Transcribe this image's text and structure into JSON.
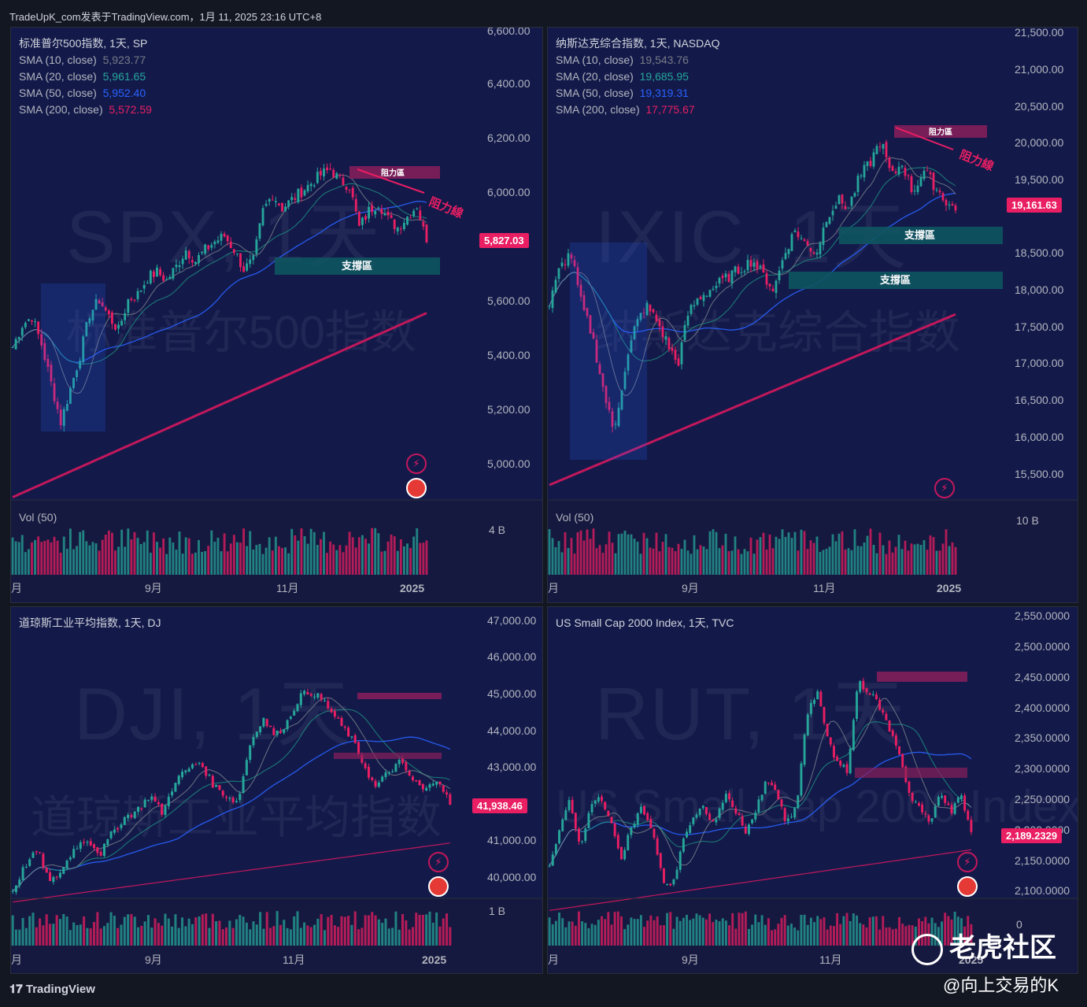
{
  "header": {
    "title": "TradeUpK_com发表于TradingView.com，1月 11, 2025 23:16 UTC+8"
  },
  "footer": {
    "brand": "TradingView",
    "watermark_brand": "老虎社区",
    "author": "@向上交易的K"
  },
  "colors": {
    "up": "#26a69a",
    "down": "#e91e63",
    "sma10": "#787b86",
    "sma20": "#1e8c7e",
    "sma50": "#2962ff",
    "sma200": "#c2185b",
    "pane_bg": "#131a4a",
    "resistance": "#8a1f5a",
    "support": "#0e5560"
  },
  "panes": [
    {
      "key": "spx",
      "title": "标准普尔500指数, 1天, SP",
      "watermark": "SPX, 1天",
      "watermark_sub": "标准普尔500指数",
      "sma": [
        {
          "label": "SMA (10, close)",
          "value": "5,923.77",
          "color": "#787b86"
        },
        {
          "label": "SMA (20, close)",
          "value": "5,961.65",
          "color": "#26a69a"
        },
        {
          "label": "SMA (50, close)",
          "value": "5,952.40",
          "color": "#2962ff"
        },
        {
          "label": "SMA (200, close)",
          "value": "5,572.59",
          "color": "#e91e63"
        }
      ],
      "y_ticks": [
        "6,600.00",
        "6,400.00",
        "6,200.00",
        "6,000.00",
        "5,600.00",
        "5,400.00",
        "5,200.00",
        "5,000.00"
      ],
      "last_price": "5,827.03",
      "vol_label": "Vol (50)",
      "vol_tick": "4 B",
      "x_ticks": [
        "月",
        "9月",
        "11月",
        "2025"
      ],
      "annotations": {
        "resistance_zone": "阻力區",
        "resistance_line": "阻力線",
        "support_zones": [
          "支撐區"
        ]
      }
    },
    {
      "key": "ixic",
      "title": "纳斯达克综合指数, 1天, NASDAQ",
      "watermark": "IXIC, 1天",
      "watermark_sub": "纳斯达克综合指数",
      "sma": [
        {
          "label": "SMA (10, close)",
          "value": "19,543.76",
          "color": "#787b86"
        },
        {
          "label": "SMA (20, close)",
          "value": "19,685.95",
          "color": "#26a69a"
        },
        {
          "label": "SMA (50, close)",
          "value": "19,319.31",
          "color": "#2962ff"
        },
        {
          "label": "SMA (200, close)",
          "value": "17,775.67",
          "color": "#e91e63"
        }
      ],
      "y_ticks": [
        "21,500.00",
        "21,000.00",
        "20,500.00",
        "20,000.00",
        "19,500.00",
        "18,500.00",
        "18,000.00",
        "17,500.00",
        "17,000.00",
        "16,500.00",
        "16,000.00",
        "15,500.00"
      ],
      "last_price": "19,161.63",
      "vol_label": "Vol (50)",
      "vol_tick": "10 B",
      "x_ticks": [
        "月",
        "9月",
        "11月",
        "2025"
      ],
      "annotations": {
        "resistance_zone": "阻力區",
        "resistance_line": "阻力線",
        "support_zones": [
          "支撐區",
          "支撐區"
        ]
      }
    },
    {
      "key": "dji",
      "title": "道琼斯工业平均指数, 1天, DJ",
      "watermark": "DJI, 1天",
      "watermark_sub": "道琼斯工业平均指数",
      "sma": [],
      "y_ticks": [
        "47,000.00",
        "46,000.00",
        "45,000.00",
        "44,000.00",
        "43,000.00",
        "41,000.00",
        "40,000.00"
      ],
      "last_price": "41,938.46",
      "vol_label": "",
      "vol_tick": "1 B",
      "x_ticks": [
        "月",
        "9月",
        "11月",
        "2025"
      ],
      "annotations": {}
    },
    {
      "key": "rut",
      "title": "US Small Cap 2000 Index, 1天, TVC",
      "watermark": "RUT, 1天",
      "watermark_sub": "US Small Cap 2000 Index",
      "sma": [],
      "y_ticks": [
        "2,550.0000",
        "2,500.0000",
        "2,450.0000",
        "2,400.0000",
        "2,350.0000",
        "2,300.0000",
        "2,250.0000",
        "2,200.0000",
        "2,150.0000",
        "2,100.0000"
      ],
      "last_price": "2,189.2329",
      "vol_label": "",
      "vol_tick": "0",
      "x_ticks": [
        "月",
        "9月",
        "11月",
        "2025"
      ],
      "annotations": {}
    }
  ],
  "chart_data": [
    {
      "type": "candlestick",
      "title": "标准普尔500指数, 1天, SP",
      "ylim": [
        4900,
        6600
      ],
      "x": [
        "月",
        "9月",
        "11月",
        "2025"
      ],
      "close_path": [
        5450,
        5530,
        5560,
        5460,
        5320,
        5180,
        5300,
        5420,
        5570,
        5620,
        5560,
        5510,
        5620,
        5640,
        5700,
        5720,
        5690,
        5740,
        5800,
        5760,
        5800,
        5830,
        5850,
        5800,
        5730,
        5760,
        5940,
        6000,
        5950,
        5980,
        6010,
        6040,
        6070,
        6090,
        6050,
        6030,
        5880,
        5940,
        5970,
        5910,
        5880,
        5920,
        5960,
        5827
      ],
      "sma200_range": [
        4910,
        5572.59
      ]
    },
    {
      "type": "candlestick",
      "title": "纳斯达克综合指数, 1天, NASDAQ",
      "ylim": [
        15300,
        21600
      ],
      "x": [
        "月",
        "9月",
        "11月",
        "2025"
      ],
      "close_path": [
        17900,
        18400,
        18600,
        17900,
        17500,
        16800,
        16200,
        17000,
        17600,
        17900,
        17700,
        17400,
        17100,
        17800,
        18000,
        18100,
        18200,
        18300,
        18400,
        18500,
        18300,
        18100,
        18600,
        18900,
        18700,
        18600,
        19100,
        19300,
        19200,
        19600,
        19800,
        20100,
        19600,
        19800,
        19400,
        19700,
        19500,
        19300,
        19161.63
      ],
      "sma200_range": [
        15500,
        17775.67
      ]
    },
    {
      "type": "candlestick",
      "title": "道琼斯工业平均指数, 1天, DJ",
      "ylim": [
        39400,
        47300
      ],
      "x": [
        "月",
        "9月",
        "11月",
        "2025"
      ],
      "close_path": [
        39600,
        40300,
        40700,
        39800,
        40200,
        40800,
        41000,
        40600,
        41200,
        41600,
        41800,
        42200,
        41700,
        42600,
        42900,
        43100,
        42500,
        42200,
        42000,
        43600,
        44300,
        43800,
        44200,
        44900,
        45000,
        44700,
        44200,
        43800,
        43100,
        42400,
        42800,
        43100,
        42600,
        42300,
        42700,
        41938.46
      ],
      "sma200_range": [
        39300,
        40900
      ]
    },
    {
      "type": "candlestick",
      "title": "US Small Cap 2000 Index, 1天, TVC",
      "ylim": [
        2080,
        2560
      ],
      "x": [
        "月",
        "9月",
        "11月",
        "2025"
      ],
      "close_path": [
        2130,
        2200,
        2240,
        2160,
        2230,
        2250,
        2200,
        2150,
        2200,
        2230,
        2190,
        2110,
        2100,
        2180,
        2210,
        2230,
        2200,
        2250,
        2230,
        2190,
        2220,
        2270,
        2260,
        2200,
        2230,
        2380,
        2420,
        2350,
        2300,
        2290,
        2440,
        2420,
        2400,
        2360,
        2320,
        2250,
        2230,
        2200,
        2260,
        2220,
        2250,
        2189.2329
      ],
      "sma200_range": [
        2060,
        2160
      ]
    }
  ]
}
